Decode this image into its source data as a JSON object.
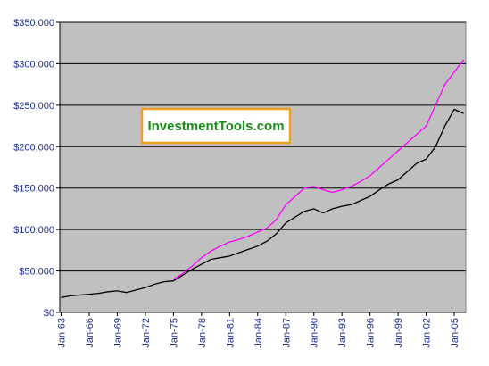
{
  "chart_data": {
    "type": "line",
    "annotation": "InvestmentTools.com",
    "categories": [
      "Jan-63",
      null,
      null,
      "Jan-66",
      null,
      null,
      "Jan-69",
      null,
      null,
      "Jan-72",
      null,
      null,
      "Jan-75",
      null,
      null,
      "Jan-78",
      null,
      null,
      "Jan-81",
      null,
      null,
      "Jan-84",
      null,
      null,
      "Jan-87",
      null,
      null,
      "Jan-90",
      null,
      null,
      "Jan-93",
      null,
      null,
      "Jan-96",
      null,
      null,
      "Jan-99",
      null,
      null,
      "Jan-02",
      null,
      null,
      "Jan-05",
      null
    ],
    "series": [
      {
        "color": "#000000",
        "values": [
          18000,
          20000,
          21000,
          22000,
          23000,
          25000,
          26000,
          24000,
          27000,
          30000,
          34000,
          37000,
          38000,
          45000,
          52000,
          58000,
          64000,
          66000,
          68000,
          72000,
          76000,
          80000,
          86000,
          95000,
          108000,
          115000,
          122000,
          125000,
          120000,
          125000,
          128000,
          130000,
          135000,
          140000,
          148000,
          155000,
          160000,
          170000,
          180000,
          185000,
          200000,
          225000,
          245000,
          240000
        ]
      },
      {
        "color": "#ff00ff",
        "values": [
          null,
          null,
          null,
          null,
          null,
          null,
          null,
          null,
          null,
          null,
          null,
          null,
          40000,
          47000,
          56000,
          66000,
          74000,
          80000,
          85000,
          88000,
          92000,
          97000,
          102000,
          112000,
          130000,
          140000,
          150000,
          152000,
          148000,
          145000,
          148000,
          152000,
          158000,
          165000,
          175000,
          185000,
          195000,
          205000,
          215000,
          225000,
          250000,
          275000,
          290000,
          305000
        ]
      }
    ],
    "ylim": [
      0,
      350000
    ],
    "yticks": [
      {
        "value": 0,
        "label": "$0"
      },
      {
        "value": 50000,
        "label": "$50,000"
      },
      {
        "value": 100000,
        "label": "$100,000"
      },
      {
        "value": 150000,
        "label": "$150,000"
      },
      {
        "value": 200000,
        "label": "$200,000"
      },
      {
        "value": 250000,
        "label": "$250,000"
      },
      {
        "value": 300000,
        "label": "$300,000"
      },
      {
        "value": 350000,
        "label": "$350,000"
      }
    ],
    "grid": true,
    "background": "#c0c0c0"
  }
}
